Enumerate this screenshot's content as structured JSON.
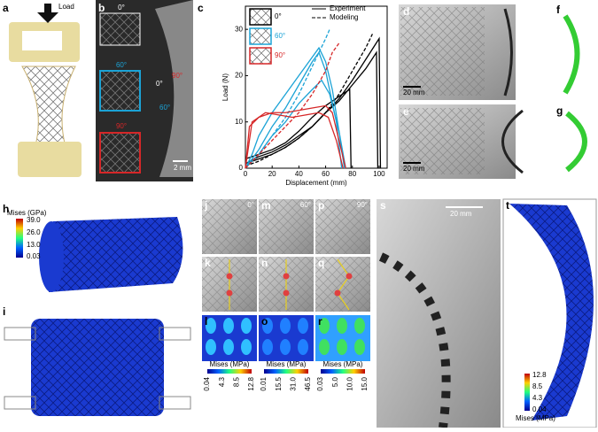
{
  "panel_labels": [
    "a",
    "b",
    "c",
    "d",
    "e",
    "f",
    "g",
    "h",
    "i",
    "j",
    "m",
    "p",
    "k",
    "n",
    "q",
    "l",
    "o",
    "r",
    "s",
    "t"
  ],
  "a": {
    "load": "Load"
  },
  "b": {
    "insets": [
      "0°",
      "60°",
      "90°"
    ],
    "photo_angles": [
      "0°",
      "90°",
      "60°"
    ],
    "scale": "2 mm"
  },
  "d": {
    "scale": "20 mm"
  },
  "e": {
    "scale": "20 mm"
  },
  "s": {
    "scale": "20 mm"
  },
  "h": {
    "colorbar_title": "Mises (GPa)",
    "colorbar_ticks": [
      "39.0",
      "26.0",
      "13.0",
      "0.03"
    ]
  },
  "jmp": {
    "angles": [
      "0°",
      "60°",
      "90°"
    ]
  },
  "lor": [
    {
      "colorbar_title": "Mises (MPa)",
      "colorbar_ticks": [
        "0.04",
        "4.3",
        "8.5",
        "12.8"
      ]
    },
    {
      "colorbar_title": "Mises (MPa)",
      "colorbar_ticks": [
        "0.01",
        "15.5",
        "31.0",
        "46.5"
      ]
    },
    {
      "colorbar_title": "Mises (MPa)",
      "colorbar_ticks": [
        "0.03",
        "5.0",
        "10.0",
        "15.0"
      ]
    }
  ],
  "t": {
    "colorbar_title": "Mises (MPa)",
    "colorbar_ticks": [
      "12.8",
      "8.5",
      "4.3",
      "0.04"
    ]
  },
  "chart_data": {
    "type": "line",
    "x_label": "Displacement (mm)",
    "y_label": "Load (N)",
    "xlim": [
      0,
      106
    ],
    "ylim": [
      0,
      35
    ],
    "xticks": [
      0,
      20,
      40,
      60,
      80,
      100
    ],
    "yticks": [
      0,
      10,
      20,
      30
    ],
    "legend": [
      {
        "label": "Experiment",
        "dashed": false
      },
      {
        "label": "Modeling",
        "dashed": true
      }
    ],
    "insets": [
      {
        "label": "0°",
        "color": "#000000"
      },
      {
        "label": "60°",
        "color": "#1ba3d6"
      },
      {
        "label": "90°",
        "color": "#d62728"
      }
    ],
    "series": [
      {
        "color": "#000000",
        "dashed": false,
        "x": [
          0,
          10,
          20,
          30,
          40,
          50,
          60,
          70,
          80,
          90,
          100,
          101
        ],
        "values": [
          1,
          2,
          3,
          4.5,
          6.5,
          9,
          12,
          15,
          19,
          23.5,
          28,
          0
        ]
      },
      {
        "color": "#000000",
        "dashed": false,
        "x": [
          0,
          10,
          20,
          30,
          40,
          50,
          60,
          70,
          80,
          90,
          98,
          99
        ],
        "values": [
          1,
          2.5,
          3.5,
          5,
          7,
          9,
          12,
          14.5,
          18,
          21.5,
          25,
          0
        ]
      },
      {
        "color": "#000000",
        "dashed": false,
        "x": [
          0,
          10,
          20,
          30,
          40,
          50,
          60,
          70,
          78,
          79
        ],
        "values": [
          2,
          3,
          4,
          5.5,
          8,
          11,
          13.5,
          15.5,
          17,
          0
        ]
      },
      {
        "color": "#000000",
        "dashed": true,
        "x": [
          0,
          10,
          20,
          30,
          40,
          50,
          60,
          70,
          80,
          90,
          95
        ],
        "values": [
          0.5,
          1.5,
          3,
          4.5,
          6.5,
          9,
          12,
          16,
          21,
          26,
          29
        ]
      },
      {
        "color": "#1ba3d6",
        "dashed": false,
        "x": [
          0,
          5,
          10,
          20,
          30,
          40,
          50,
          55,
          60,
          65,
          70,
          75
        ],
        "values": [
          0,
          3,
          7,
          12,
          16,
          20,
          24,
          26,
          23,
          17,
          8,
          0
        ]
      },
      {
        "color": "#1ba3d6",
        "dashed": false,
        "x": [
          0,
          10,
          20,
          30,
          40,
          50,
          55,
          60,
          68,
          72
        ],
        "values": [
          0,
          4,
          9,
          13,
          18,
          23,
          25,
          21,
          10,
          0
        ]
      },
      {
        "color": "#1ba3d6",
        "dashed": false,
        "x": [
          0,
          10,
          20,
          30,
          40,
          50,
          57,
          63,
          70,
          74
        ],
        "values": [
          0,
          3,
          7,
          10,
          14,
          17,
          19,
          16,
          8,
          0
        ]
      },
      {
        "color": "#1ba3d6",
        "dashed": true,
        "x": [
          0,
          10,
          20,
          30,
          40,
          50,
          60,
          63
        ],
        "values": [
          0,
          3,
          7,
          11,
          16,
          22,
          28,
          30
        ]
      },
      {
        "color": "#d62728",
        "dashed": false,
        "x": [
          0,
          3,
          10,
          20,
          30,
          40,
          50,
          60,
          65,
          70,
          75
        ],
        "values": [
          0,
          9,
          11,
          12,
          12,
          12.5,
          13,
          13.5,
          12,
          6,
          0
        ]
      },
      {
        "color": "#d62728",
        "dashed": false,
        "x": [
          0,
          5,
          15,
          25,
          35,
          45,
          55,
          62,
          68,
          73
        ],
        "values": [
          0,
          10,
          12,
          11.5,
          11,
          11.5,
          12,
          11,
          6,
          0
        ]
      },
      {
        "color": "#d62728",
        "dashed": true,
        "x": [
          0,
          10,
          20,
          30,
          40,
          50,
          60,
          65,
          70
        ],
        "values": [
          0,
          3,
          6,
          9,
          12,
          16,
          21,
          25,
          27
        ]
      }
    ]
  }
}
